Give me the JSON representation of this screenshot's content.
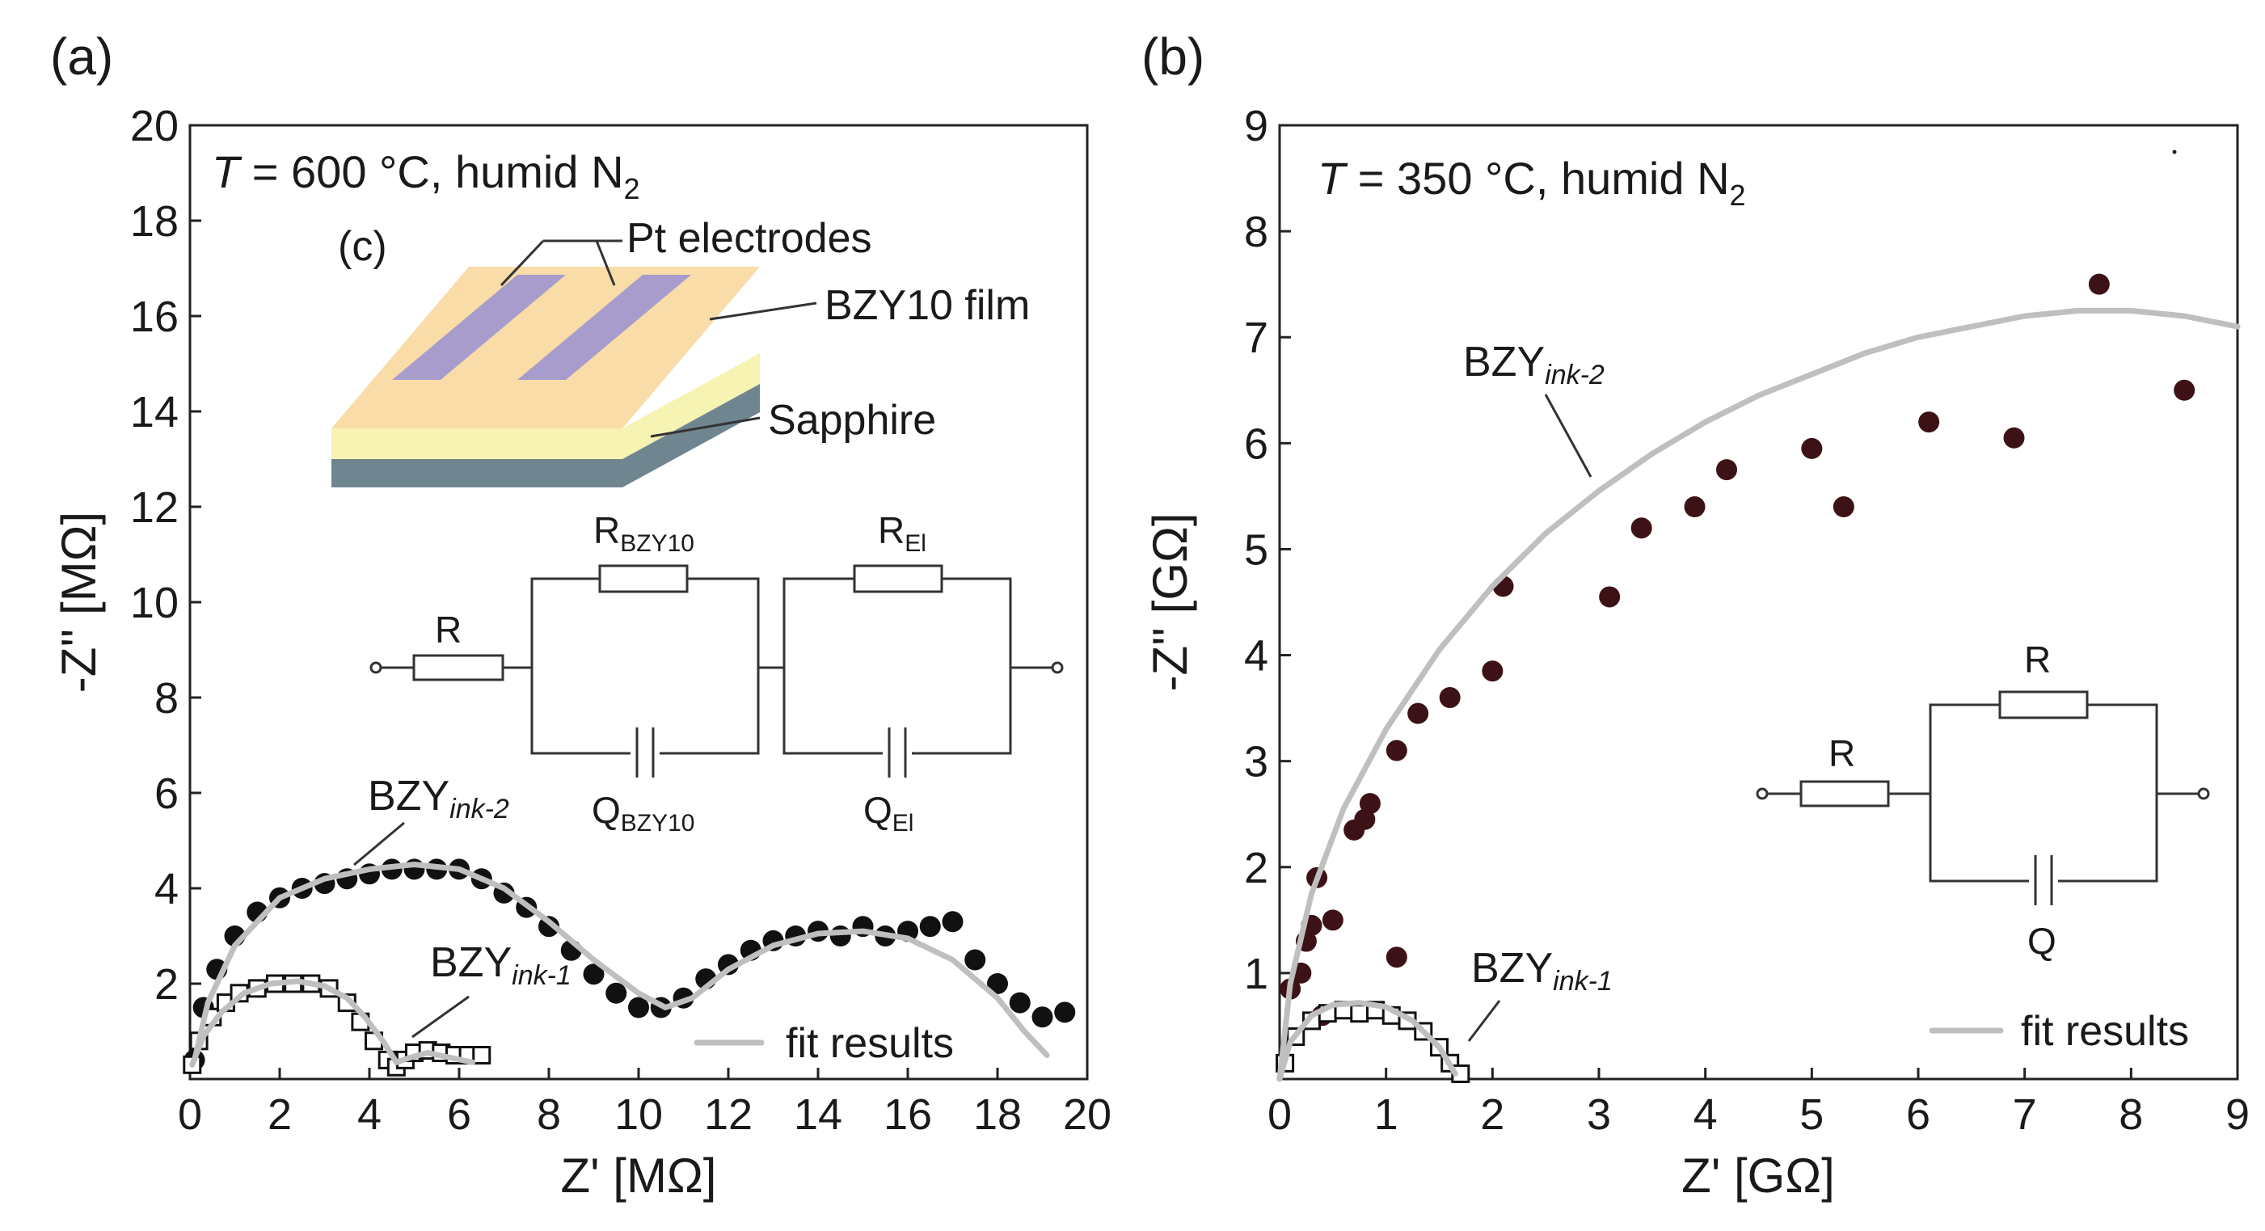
{
  "panels": {
    "a": {
      "label": "(a)",
      "condition_T": "T",
      "condition_rest": " = 600 °C, humid N",
      "condition_sub": "2",
      "inset_label": "(c)",
      "inset_pt": "Pt electrodes",
      "inset_film": "BZY10 film",
      "inset_substrate": "Sapphire",
      "circuit": {
        "r_series": "R",
        "r_bulk_main": "R",
        "r_bulk_sub": "BZY10",
        "r_el_main": "R",
        "r_el_sub": "El",
        "q_bulk_main": "Q",
        "q_bulk_sub": "BZY10",
        "q_el_main": "Q",
        "q_el_sub": "El"
      },
      "label_ink2_main": "BZY",
      "label_ink2_sub": "ink-2",
      "label_ink1_main": "BZY",
      "label_ink1_sub": "ink-1",
      "legend_fit": "fit results"
    },
    "b": {
      "label": "(b)",
      "condition_T": "T",
      "condition_rest": " = 350 °C, humid N",
      "condition_sub": "2",
      "circuit": {
        "r_series": "R",
        "r_parallel": "R",
        "q_parallel": "Q"
      },
      "label_ink2_main": "BZY",
      "label_ink2_sub": "ink-2",
      "label_ink1_main": "BZY",
      "label_ink1_sub": "ink-1",
      "legend_fit": "fit results"
    }
  },
  "colors": {
    "marker_dark": "#111111",
    "marker_brown": "#3d1216",
    "fit_line": "#bfbfbf",
    "pt_electrode": "#a79ccc",
    "bzy_film_top": "#f9dca8",
    "bzy_film_side": "#f7f3b3",
    "sapphire": "#6f8590"
  },
  "chart_data": [
    {
      "type": "scatter",
      "panel": "a",
      "xlabel": "Z' [MΩ]",
      "ylabel": "-Z'' [MΩ]",
      "xlim": [
        0,
        20
      ],
      "ylim": [
        0,
        20
      ],
      "xticks": [
        "0",
        "2",
        "4",
        "6",
        "8",
        "10",
        "12",
        "14",
        "16",
        "18",
        "20"
      ],
      "yticks": [
        "2",
        "4",
        "6",
        "8",
        "10",
        "12",
        "14",
        "16",
        "18",
        "20"
      ],
      "series": [
        {
          "name": "BZY ink-2",
          "marker": "filled-circle",
          "x": [
            0.1,
            0.3,
            0.6,
            1.0,
            1.5,
            2.0,
            2.5,
            3.0,
            3.5,
            4.0,
            4.5,
            5.0,
            5.5,
            6.0,
            6.5,
            7.0,
            7.5,
            8.0,
            8.5,
            9.0,
            9.5,
            10.0,
            10.5,
            11.0,
            11.5,
            12.0,
            12.5,
            13.0,
            13.5,
            14.0,
            14.5,
            15.0,
            15.5,
            16.0,
            16.5,
            17.0,
            17.5,
            18.0,
            18.5,
            19.0,
            19.5
          ],
          "y": [
            0.4,
            1.5,
            2.3,
            3.0,
            3.5,
            3.8,
            4.0,
            4.1,
            4.2,
            4.3,
            4.4,
            4.4,
            4.4,
            4.4,
            4.2,
            3.9,
            3.6,
            3.2,
            2.7,
            2.2,
            1.8,
            1.5,
            1.5,
            1.7,
            2.1,
            2.4,
            2.7,
            2.9,
            3.0,
            3.1,
            3.0,
            3.2,
            3.0,
            3.1,
            3.2,
            3.3,
            2.5,
            2.0,
            1.6,
            1.3,
            1.4
          ]
        },
        {
          "name": "BZY ink-1",
          "marker": "open-square",
          "x": [
            0.05,
            0.2,
            0.5,
            0.8,
            1.1,
            1.5,
            1.9,
            2.3,
            2.7,
            3.1,
            3.5,
            3.8,
            4.1,
            4.4,
            4.6,
            4.8,
            5.0,
            5.3,
            5.6,
            5.9,
            6.2,
            6.5
          ],
          "y": [
            0.3,
            0.8,
            1.3,
            1.6,
            1.8,
            1.9,
            2.0,
            2.0,
            2.0,
            1.9,
            1.6,
            1.2,
            0.8,
            0.4,
            0.25,
            0.4,
            0.55,
            0.6,
            0.55,
            0.5,
            0.5,
            0.5
          ]
        },
        {
          "name": "fit results",
          "marker": "line",
          "x": [
            0.1,
            0.4,
            1.0,
            2.0,
            3.0,
            4.0,
            5.0,
            6.0,
            7.0,
            8.0,
            9.0,
            10.0,
            10.6,
            11.2,
            12.0,
            13.0,
            14.0,
            15.0,
            16.0,
            17.0,
            18.0,
            18.6,
            19.1
          ],
          "y": [
            0.4,
            1.6,
            2.8,
            3.8,
            4.2,
            4.4,
            4.5,
            4.4,
            4.0,
            3.3,
            2.5,
            1.8,
            1.5,
            1.7,
            2.3,
            2.8,
            3.05,
            3.1,
            2.95,
            2.5,
            1.7,
            1.0,
            0.5
          ]
        },
        {
          "name": "fit results ink-1",
          "marker": "line",
          "x": [
            0.05,
            0.3,
            0.7,
            1.2,
            1.8,
            2.4,
            3.0,
            3.5,
            3.9,
            4.3,
            4.6,
            4.9,
            5.3,
            5.8,
            6.3
          ],
          "y": [
            0.3,
            0.9,
            1.4,
            1.8,
            2.0,
            2.05,
            1.95,
            1.7,
            1.3,
            0.8,
            0.35,
            0.45,
            0.55,
            0.45,
            0.35
          ]
        }
      ]
    },
    {
      "type": "scatter",
      "panel": "b",
      "xlabel": "Z' [GΩ]",
      "ylabel": "-Z'' [GΩ]",
      "xlim": [
        0,
        9
      ],
      "ylim": [
        0,
        9
      ],
      "xticks": [
        "0",
        "1",
        "2",
        "3",
        "4",
        "5",
        "6",
        "7",
        "8",
        "9"
      ],
      "yticks": [
        "1",
        "2",
        "3",
        "4",
        "5",
        "6",
        "7",
        "8",
        "9"
      ],
      "series": [
        {
          "name": "BZY ink-2",
          "marker": "filled-circle",
          "x": [
            0.1,
            0.2,
            0.25,
            0.3,
            0.35,
            0.4,
            0.5,
            0.7,
            0.8,
            0.85,
            1.1,
            1.1,
            1.3,
            1.6,
            2.0,
            2.1,
            3.1,
            3.4,
            3.9,
            4.2,
            5.0,
            5.3,
            6.1,
            6.9,
            7.7,
            8.5
          ],
          "y": [
            0.85,
            1.0,
            1.3,
            1.45,
            1.9,
            0.6,
            1.5,
            2.35,
            2.45,
            2.6,
            1.15,
            3.1,
            3.45,
            3.6,
            3.85,
            4.65,
            4.55,
            5.2,
            5.4,
            5.75,
            5.95,
            5.4,
            6.2,
            6.05,
            7.5,
            6.5
          ]
        },
        {
          "name": "BZY ink-1",
          "marker": "open-square",
          "x": [
            0.05,
            0.15,
            0.3,
            0.45,
            0.6,
            0.75,
            0.9,
            1.05,
            1.2,
            1.35,
            1.5,
            1.6,
            1.7
          ],
          "y": [
            0.15,
            0.4,
            0.55,
            0.62,
            0.65,
            0.62,
            0.65,
            0.6,
            0.55,
            0.45,
            0.3,
            0.15,
            0.05
          ]
        },
        {
          "name": "fit results",
          "marker": "line",
          "x": [
            0.0,
            0.1,
            0.3,
            0.6,
            1.0,
            1.5,
            2.0,
            2.5,
            3.0,
            3.5,
            4.0,
            4.5,
            5.0,
            5.5,
            6.0,
            6.5,
            7.0,
            7.5,
            8.0,
            8.5,
            9.0
          ],
          "y": [
            0.0,
            0.9,
            1.75,
            2.55,
            3.3,
            4.05,
            4.65,
            5.15,
            5.55,
            5.9,
            6.2,
            6.45,
            6.65,
            6.85,
            7.0,
            7.1,
            7.2,
            7.25,
            7.25,
            7.2,
            7.1
          ]
        },
        {
          "name": "fit results ink-1",
          "marker": "line",
          "x": [
            0.0,
            0.1,
            0.3,
            0.5,
            0.75,
            1.0,
            1.25,
            1.5,
            1.65
          ],
          "y": [
            0.0,
            0.35,
            0.6,
            0.7,
            0.72,
            0.68,
            0.55,
            0.3,
            0.05
          ]
        }
      ]
    }
  ]
}
